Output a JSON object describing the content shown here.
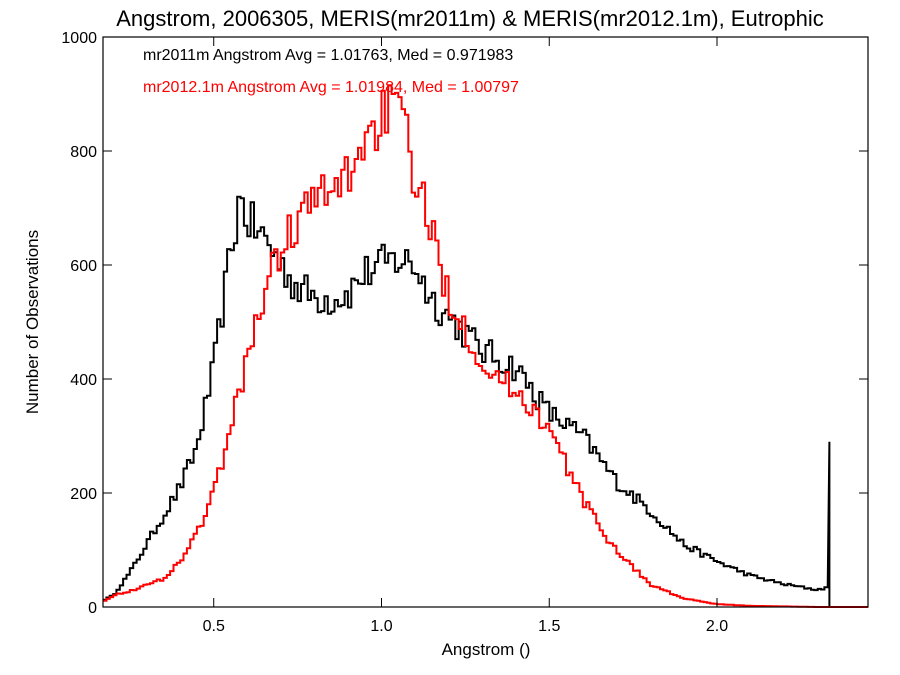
{
  "chart_data": {
    "type": "histogram",
    "title": "Angstrom, 2006305, MERIS(mr2011m) & MERIS(mr2012.1m), Eutrophic",
    "xlabel": "Angstrom ()",
    "ylabel": "Number of Observations",
    "xlim": [
      0.17,
      2.45
    ],
    "ylim": [
      0,
      1000
    ],
    "xticks": [
      0.5,
      1.0,
      1.5,
      2.0
    ],
    "xtick_labels": [
      "0.5",
      "1.0",
      "1.5",
      "2.0"
    ],
    "yticks": [
      0,
      200,
      400,
      600,
      800,
      1000
    ],
    "ytick_labels": [
      "0",
      "200",
      "400",
      "600",
      "800",
      "1000"
    ],
    "grid": false,
    "bin_width": 0.01,
    "annotations": [
      {
        "text": "mr2011m Angstrom Avg = 1.01763, Med = 0.971983",
        "color": "#000000"
      },
      {
        "text": "mr2012.1m Angstrom Avg = 1.01984, Med = 1.00797",
        "color": "#ff0000"
      }
    ],
    "series": [
      {
        "color": "#000000",
        "profile_x": [
          0.17,
          0.2,
          0.25,
          0.3,
          0.35,
          0.4,
          0.45,
          0.5,
          0.55,
          0.58,
          0.6,
          0.63,
          0.66,
          0.7,
          0.75,
          0.8,
          0.85,
          0.9,
          0.95,
          1.0,
          1.05,
          1.1,
          1.15,
          1.2,
          1.3,
          1.4,
          1.5,
          1.6,
          1.7,
          1.8,
          1.9,
          2.0,
          2.1,
          2.2,
          2.3,
          2.33
        ],
        "profile_y": [
          12,
          20,
          60,
          110,
          160,
          210,
          280,
          420,
          620,
          720,
          680,
          660,
          640,
          600,
          560,
          545,
          540,
          550,
          585,
          600,
          610,
          600,
          540,
          510,
          450,
          420,
          340,
          300,
          220,
          170,
          110,
          80,
          55,
          40,
          30,
          35
        ],
        "spike": {
          "x": 2.335,
          "y": 290
        }
      },
      {
        "color": "#ff0000",
        "profile_x": [
          0.17,
          0.2,
          0.25,
          0.3,
          0.35,
          0.4,
          0.45,
          0.5,
          0.55,
          0.6,
          0.65,
          0.7,
          0.75,
          0.8,
          0.85,
          0.9,
          0.95,
          1.0,
          1.03,
          1.06,
          1.1,
          1.15,
          1.2,
          1.25,
          1.3,
          1.35,
          1.4,
          1.45,
          1.5,
          1.55,
          1.6,
          1.65,
          1.7,
          1.75,
          1.8,
          1.9,
          2.0,
          2.1,
          2.2,
          2.3,
          2.45
        ],
        "profile_y": [
          10,
          20,
          28,
          38,
          50,
          80,
          130,
          200,
          310,
          440,
          550,
          630,
          680,
          715,
          720,
          760,
          820,
          860,
          880,
          850,
          760,
          650,
          550,
          490,
          430,
          400,
          380,
          350,
          310,
          250,
          190,
          140,
          100,
          70,
          40,
          15,
          5,
          2,
          1,
          0,
          0
        ]
      }
    ]
  }
}
